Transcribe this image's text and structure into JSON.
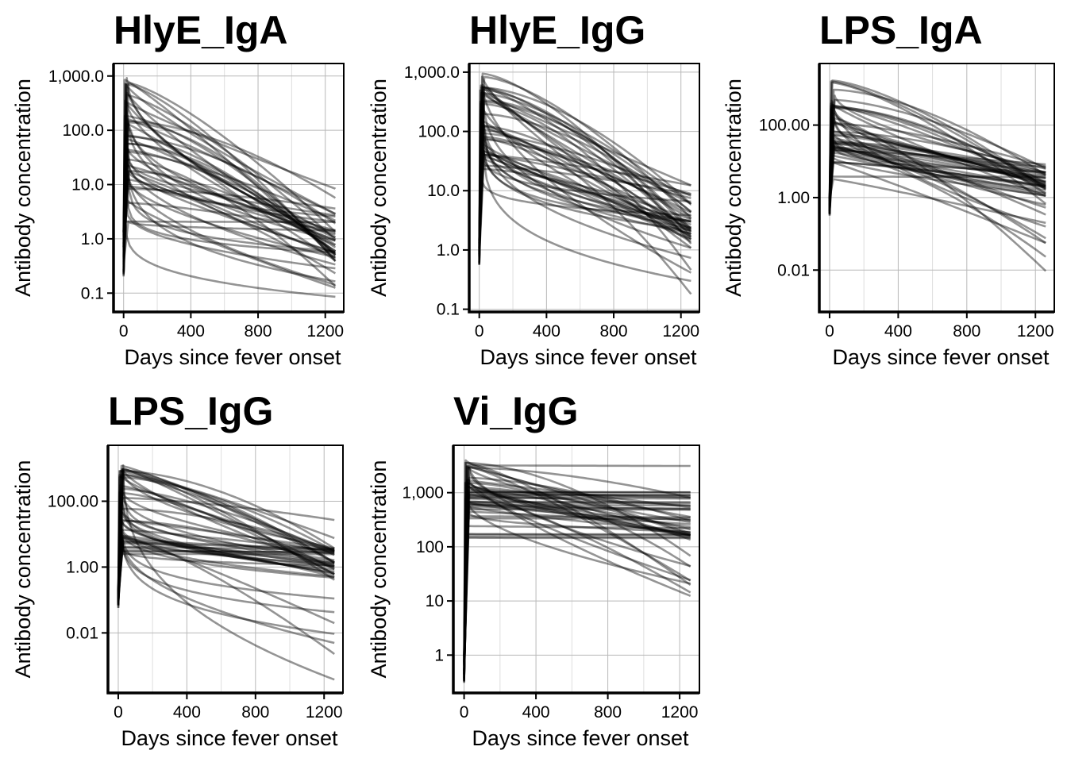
{
  "chart_data": [
    {
      "type": "line",
      "title": "HlyE_IgA",
      "xlabel": "Days since fever onset",
      "ylabel": "Antibody concentration",
      "x_scale": "linear",
      "y_scale": "log10",
      "xlim": [
        -60,
        1310
      ],
      "ylim": [
        0.045,
        1700
      ],
      "x_ticks": [
        0,
        400,
        800,
        1200
      ],
      "x_tick_labels": [
        "0",
        "400",
        "800",
        "1200"
      ],
      "y_ticks": [
        1000,
        100,
        10,
        1,
        0.1
      ],
      "y_tick_labels": [
        "1,000.0",
        "100.0",
        "10.0",
        "1.0",
        "0.1"
      ],
      "grid": true,
      "series_count": 50,
      "x_end": 1260,
      "baseline_range": [
        0.2,
        1.5
      ],
      "peak_range": [
        2,
        1000
      ],
      "end_range": [
        0.075,
        14
      ],
      "end_cluster": 1.0
    },
    {
      "type": "line",
      "title": "HlyE_IgG",
      "xlabel": "Days since fever onset",
      "ylabel": "Antibody concentration",
      "x_scale": "linear",
      "y_scale": "log10",
      "xlim": [
        -60,
        1310
      ],
      "ylim": [
        0.09,
        1400
      ],
      "x_ticks": [
        0,
        400,
        800,
        1200
      ],
      "x_tick_labels": [
        "0",
        "400",
        "800",
        "1200"
      ],
      "y_ticks": [
        1000,
        100,
        10,
        1,
        0.1
      ],
      "y_tick_labels": [
        "1,000.0",
        "100.0",
        "10.0",
        "1.0",
        "0.1"
      ],
      "grid": true,
      "series_count": 50,
      "x_end": 1260,
      "baseline_range": [
        0.55,
        1.5
      ],
      "peak_range": [
        20,
        950
      ],
      "end_range": [
        0.14,
        18
      ],
      "end_cluster": 3.0
    },
    {
      "type": "line",
      "title": "LPS_IgA",
      "xlabel": "Days since fever onset",
      "ylabel": "Antibody concentration",
      "x_scale": "linear",
      "y_scale": "log10",
      "xlim": [
        -60,
        1310
      ],
      "ylim": [
        0.0007,
        5000
      ],
      "x_ticks": [
        0,
        400,
        800,
        1200
      ],
      "x_tick_labels": [
        "0",
        "400",
        "800",
        "1200"
      ],
      "y_ticks": [
        100,
        1,
        0.01
      ],
      "y_tick_labels": [
        "100.00",
        "1.00",
        "0.01"
      ],
      "grid": true,
      "series_count": 50,
      "x_end": 1260,
      "baseline_range": [
        0.3,
        1.0
      ],
      "peak_range": [
        2,
        1800
      ],
      "end_range": [
        0.002,
        10
      ],
      "end_cluster": 3.0
    },
    {
      "type": "line",
      "title": "LPS_IgG",
      "xlabel": "Days since fever onset",
      "ylabel": "Antibody concentration",
      "x_scale": "linear",
      "y_scale": "log10",
      "xlim": [
        -60,
        1310
      ],
      "ylim": [
        0.00015,
        5000
      ],
      "x_ticks": [
        0,
        400,
        800,
        1200
      ],
      "x_tick_labels": [
        "0",
        "400",
        "800",
        "1200"
      ],
      "y_ticks": [
        100,
        1,
        0.01
      ],
      "y_tick_labels": [
        "100.00",
        "1.00",
        "0.01"
      ],
      "grid": true,
      "series_count": 50,
      "x_end": 1260,
      "baseline_range": [
        0.05,
        0.2
      ],
      "peak_range": [
        2,
        1800
      ],
      "end_range": [
        0.0003,
        30
      ],
      "end_cluster": 1.5
    },
    {
      "type": "line",
      "title": "Vi_IgG",
      "xlabel": "Days since fever onset",
      "ylabel": "Antibody concentration",
      "x_scale": "linear",
      "y_scale": "log10",
      "xlim": [
        -60,
        1310
      ],
      "ylim": [
        0.2,
        7500
      ],
      "x_ticks": [
        0,
        400,
        800,
        1200
      ],
      "x_tick_labels": [
        "0",
        "400",
        "800",
        "1200"
      ],
      "y_ticks": [
        1000,
        100,
        10,
        1
      ],
      "y_tick_labels": [
        "1,000",
        "100",
        "10",
        "1"
      ],
      "grid": true,
      "series_count": 50,
      "x_end": 1260,
      "baseline_range": [
        0.3,
        1.0
      ],
      "peak_range": [
        120,
        4200
      ],
      "end_range": [
        12,
        4000
      ],
      "end_cluster": 450
    }
  ]
}
